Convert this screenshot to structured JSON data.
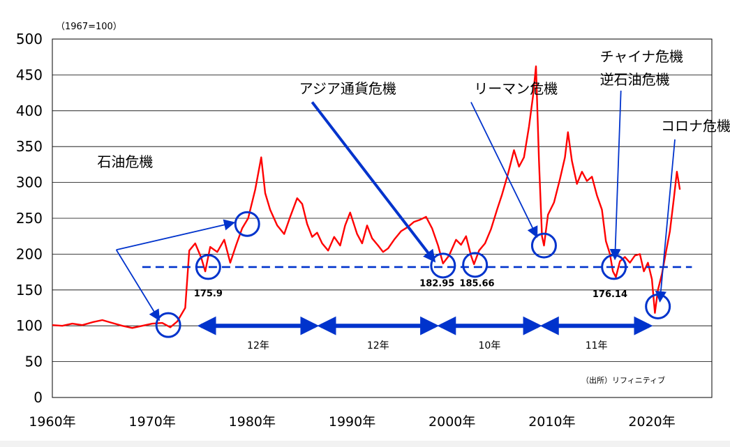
{
  "chart_data": {
    "type": "line",
    "unit_note": "（1967=100）",
    "ylim": [
      0,
      500
    ],
    "yticks": [
      "0",
      "50",
      "100",
      "150",
      "200",
      "250",
      "300",
      "350",
      "400",
      "450",
      "500"
    ],
    "yvals": [
      0,
      50,
      100,
      150,
      200,
      250,
      300,
      350,
      400,
      450,
      500
    ],
    "xlim": [
      1960,
      2026
    ],
    "xticks": [
      {
        "label": "1960年",
        "x": 1960
      },
      {
        "label": "1970年",
        "x": 1970
      },
      {
        "label": "1980年",
        "x": 1980
      },
      {
        "label": "1990年",
        "x": 1990
      },
      {
        "label": "2000年",
        "x": 2000
      },
      {
        "label": "2010年",
        "x": 2010
      },
      {
        "label": "2020年",
        "x": 2020
      }
    ],
    "series": [
      {
        "name": "index",
        "color": "#ff0000",
        "points": [
          [
            1960,
            101
          ],
          [
            1961,
            100
          ],
          [
            1962,
            103
          ],
          [
            1963,
            101
          ],
          [
            1964,
            105
          ],
          [
            1965,
            108
          ],
          [
            1966,
            104
          ],
          [
            1967,
            100
          ],
          [
            1968,
            97
          ],
          [
            1969,
            100
          ],
          [
            1970,
            103
          ],
          [
            1971,
            104
          ],
          [
            1971.8,
            98
          ],
          [
            1972.5,
            106
          ],
          [
            1973.3,
            125
          ],
          [
            1973.7,
            205
          ],
          [
            1974.3,
            215
          ],
          [
            1974.9,
            195
          ],
          [
            1975.3,
            176
          ],
          [
            1975.8,
            210
          ],
          [
            1976.5,
            203
          ],
          [
            1977.2,
            220
          ],
          [
            1977.8,
            188
          ],
          [
            1978.4,
            213
          ],
          [
            1979,
            236
          ],
          [
            1979.6,
            250
          ],
          [
            1980.3,
            290
          ],
          [
            1980.9,
            335
          ],
          [
            1981.3,
            285
          ],
          [
            1981.8,
            262
          ],
          [
            1982.5,
            240
          ],
          [
            1983.2,
            228
          ],
          [
            1983.8,
            252
          ],
          [
            1984.5,
            278
          ],
          [
            1985,
            270
          ],
          [
            1985.5,
            242
          ],
          [
            1986,
            224
          ],
          [
            1986.5,
            230
          ],
          [
            1987,
            215
          ],
          [
            1987.6,
            205
          ],
          [
            1988.2,
            224
          ],
          [
            1988.8,
            212
          ],
          [
            1989.3,
            240
          ],
          [
            1989.8,
            258
          ],
          [
            1990.5,
            228
          ],
          [
            1991,
            215
          ],
          [
            1991.5,
            240
          ],
          [
            1992,
            222
          ],
          [
            1992.6,
            212
          ],
          [
            1993.1,
            203
          ],
          [
            1993.6,
            208
          ],
          [
            1994.2,
            220
          ],
          [
            1994.9,
            232
          ],
          [
            1995.6,
            238
          ],
          [
            1996.2,
            245
          ],
          [
            1996.8,
            248
          ],
          [
            1997.4,
            252
          ],
          [
            1998,
            236
          ],
          [
            1998.6,
            212
          ],
          [
            1999.1,
            187
          ],
          [
            1999.7,
            198
          ],
          [
            2000.4,
            220
          ],
          [
            2000.9,
            213
          ],
          [
            2001.4,
            225
          ],
          [
            2001.9,
            198
          ],
          [
            2002.2,
            186
          ],
          [
            2002.7,
            205
          ],
          [
            2003.3,
            215
          ],
          [
            2003.9,
            235
          ],
          [
            2004.5,
            262
          ],
          [
            2005,
            283
          ],
          [
            2005.6,
            312
          ],
          [
            2006.2,
            345
          ],
          [
            2006.7,
            322
          ],
          [
            2007.2,
            335
          ],
          [
            2007.7,
            378
          ],
          [
            2008.1,
            420
          ],
          [
            2008.4,
            462
          ],
          [
            2008.7,
            330
          ],
          [
            2009,
            225
          ],
          [
            2009.2,
            212
          ],
          [
            2009.6,
            255
          ],
          [
            2010.2,
            272
          ],
          [
            2010.8,
            305
          ],
          [
            2011.3,
            335
          ],
          [
            2011.6,
            370
          ],
          [
            2012,
            330
          ],
          [
            2012.5,
            298
          ],
          [
            2013,
            315
          ],
          [
            2013.5,
            302
          ],
          [
            2014,
            308
          ],
          [
            2014.5,
            282
          ],
          [
            2015,
            262
          ],
          [
            2015.4,
            218
          ],
          [
            2015.8,
            200
          ],
          [
            2016.1,
            176
          ],
          [
            2016.4,
            168
          ],
          [
            2016.8,
            190
          ],
          [
            2017.3,
            196
          ],
          [
            2017.8,
            188
          ],
          [
            2018.3,
            198
          ],
          [
            2018.8,
            200
          ],
          [
            2019.2,
            176
          ],
          [
            2019.6,
            188
          ],
          [
            2020,
            165
          ],
          [
            2020.3,
            118
          ],
          [
            2020.6,
            150
          ],
          [
            2021,
            172
          ],
          [
            2021.4,
            202
          ],
          [
            2021.8,
            232
          ],
          [
            2022.2,
            278
          ],
          [
            2022.5,
            315
          ],
          [
            2022.8,
            290
          ]
        ]
      },
      {
        "name": "level",
        "color": "#0033cc",
        "style": "dashed",
        "points": [
          [
            1969,
            182
          ],
          [
            2024,
            182
          ]
        ]
      }
    ],
    "annotations": [
      {
        "text": "石油危機",
        "x": 1964.5,
        "y": 322
      },
      {
        "text": "アジア通貨危機",
        "x": 1984.7,
        "y": 424
      },
      {
        "text": "リーマン危機",
        "x": 2002.2,
        "y": 424
      },
      {
        "text": "チャイナ危機",
        "x": 2014.8,
        "y": 469
      },
      {
        "text": "逆石油危機",
        "x": 2014.8,
        "y": 437
      },
      {
        "text": "コロナ危機",
        "x": 2020.9,
        "y": 372
      }
    ],
    "circles": [
      {
        "x": 1971.6,
        "y": 101
      },
      {
        "x": 1975.6,
        "y": 182
      },
      {
        "x": 1979.5,
        "y": 242
      },
      {
        "x": 1999.1,
        "y": 184
      },
      {
        "x": 2002.3,
        "y": 185
      },
      {
        "x": 2009.2,
        "y": 212
      },
      {
        "x": 2016.2,
        "y": 182
      },
      {
        "x": 2020.6,
        "y": 127
      }
    ],
    "arrows": [
      {
        "from": [
          1966.4,
          206
        ],
        "to": [
          1970.7,
          108
        ]
      },
      {
        "from": [
          1966.4,
          206
        ],
        "to": [
          1978.2,
          244
        ]
      },
      {
        "from": [
          1986.0,
          412
        ],
        "to": [
          1998.2,
          191
        ]
      },
      {
        "from": [
          2001.9,
          412
        ],
        "to": [
          2008.5,
          224
        ]
      },
      {
        "from": [
          2016.9,
          428
        ],
        "to": [
          2016.3,
          193
        ]
      },
      {
        "from": [
          2022.3,
          360
        ],
        "to": [
          2020.8,
          134
        ]
      }
    ],
    "value_labels": [
      {
        "text": "175.9",
        "x": 1975.6,
        "y": 141
      },
      {
        "text": "182.95",
        "x": 1998.5,
        "y": 155
      },
      {
        "text": "185.66",
        "x": 2002.5,
        "y": 155
      },
      {
        "text": "176.14",
        "x": 2015.8,
        "y": 140
      }
    ],
    "spans": [
      {
        "label": "12年",
        "from": 1974.6,
        "to": 1986.6
      },
      {
        "label": "12年",
        "from": 1986.6,
        "to": 1998.6
      },
      {
        "label": "10年",
        "from": 1998.6,
        "to": 2008.9
      },
      {
        "label": "11年",
        "from": 2008.9,
        "to": 2020.0
      }
    ],
    "span_y": 100,
    "source": "（出所）リフィニティブ"
  }
}
